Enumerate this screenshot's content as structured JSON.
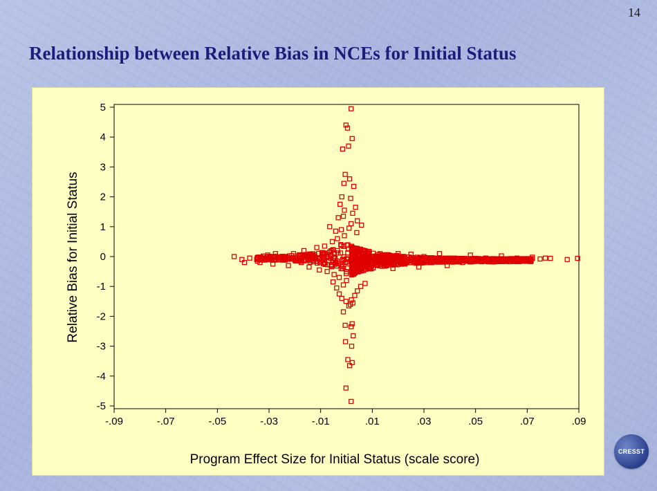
{
  "slide": {
    "page_number": "14",
    "title": "Relationship between Relative Bias in NCEs for Initial Status",
    "logo_text": "CRESST"
  },
  "colors": {
    "background": "#b3bee3",
    "title": "#1c1c7c",
    "chart_panel": "#ffffc4",
    "marker": "#e00000"
  },
  "chart_data": {
    "type": "scatter",
    "title": "",
    "xlabel": "Program Effect Size for Initial Status (scale score)",
    "ylabel": "Relative Bias for Initial Status",
    "xlim": [
      -0.09,
      0.09
    ],
    "ylim": [
      -5,
      5
    ],
    "xticks": [
      -0.09,
      -0.07,
      -0.05,
      -0.03,
      -0.01,
      0.01,
      0.03,
      0.05,
      0.07,
      0.09
    ],
    "xtick_labels": [
      "-.09",
      "-.07",
      "-.05",
      "-.03",
      "-.01",
      ".01",
      ".03",
      ".05",
      ".07",
      ".09"
    ],
    "yticks": [
      5,
      4,
      3,
      2,
      1,
      0,
      -1,
      -2,
      -3,
      -4,
      -5
    ],
    "ytick_labels": [
      "5",
      "4",
      "3",
      "2",
      "1",
      "0",
      "-1",
      "-2",
      "-3",
      "-4",
      "-5"
    ],
    "grid": false,
    "marker": "open-square",
    "series": [
      {
        "points": [
          [
            0.0018,
            4.95
          ],
          [
            -0.0002,
            4.4
          ],
          [
            0.0004,
            4.3
          ],
          [
            0.0022,
            3.95
          ],
          [
            -0.0015,
            3.6
          ],
          [
            0.0008,
            3.7
          ],
          [
            -0.0005,
            2.75
          ],
          [
            0.0012,
            2.6
          ],
          [
            -0.001,
            2.45
          ],
          [
            0.0028,
            2.35
          ],
          [
            -0.0018,
            2.0
          ],
          [
            0.0016,
            1.95
          ],
          [
            -0.0025,
            1.75
          ],
          [
            0.0035,
            1.65
          ],
          [
            -0.0008,
            1.55
          ],
          [
            0.0024,
            1.45
          ],
          [
            -0.0032,
            1.3
          ],
          [
            0.0042,
            1.2
          ],
          [
            -0.0012,
            1.35
          ],
          [
            0.0018,
            1.1
          ],
          [
            -0.0065,
            1.0
          ],
          [
            0.0058,
            1.05
          ],
          [
            0.001,
            0.95
          ],
          [
            -0.002,
            0.9
          ],
          [
            -0.0042,
            0.85
          ],
          [
            0.004,
            0.8
          ],
          [
            0.0018,
            -4.85
          ],
          [
            -0.0002,
            -4.4
          ],
          [
            0.0012,
            -3.65
          ],
          [
            0.0022,
            -3.55
          ],
          [
            0.0005,
            -3.45
          ],
          [
            0.002,
            -3.0
          ],
          [
            -0.0004,
            -2.85
          ],
          [
            0.0026,
            -2.65
          ],
          [
            0.0018,
            -2.35
          ],
          [
            -0.0005,
            -2.3
          ],
          [
            0.0022,
            -2.25
          ],
          [
            -0.0012,
            -1.85
          ],
          [
            0.0015,
            -1.6
          ],
          [
            0.0025,
            -1.55
          ],
          [
            -0.0002,
            -1.5
          ],
          [
            0.0009,
            -1.65
          ],
          [
            0.0019,
            -1.45
          ],
          [
            -0.0018,
            -1.4
          ],
          [
            0.0032,
            -1.3
          ],
          [
            -0.0028,
            -1.25
          ],
          [
            0.0042,
            -1.15
          ],
          [
            -0.0038,
            -1.05
          ],
          [
            0.0055,
            -1.0
          ],
          [
            -0.0012,
            -0.95
          ],
          [
            0.0072,
            -0.9
          ],
          [
            -0.0052,
            -0.85
          ],
          [
            -0.0435,
            0.0
          ],
          [
            -0.0405,
            -0.1
          ],
          [
            -0.0395,
            -0.2
          ],
          [
            -0.0375,
            -0.05
          ],
          [
            -0.0345,
            -0.15
          ],
          [
            -0.0335,
            -0.2
          ],
          [
            -0.0305,
            0.05
          ],
          [
            -0.0285,
            -0.25
          ],
          [
            -0.0275,
            0.1
          ],
          [
            -0.0255,
            -0.05
          ],
          [
            -0.0235,
            0.0
          ],
          [
            -0.0225,
            -0.3
          ],
          [
            -0.0205,
            0.1
          ],
          [
            -0.0195,
            -0.1
          ],
          [
            -0.0175,
            -0.2
          ],
          [
            -0.0165,
            0.2
          ],
          [
            -0.0145,
            -0.35
          ],
          [
            -0.0135,
            0.05
          ],
          [
            -0.0115,
            0.3
          ],
          [
            -0.0105,
            -0.45
          ],
          [
            -0.0095,
            -0.1
          ],
          [
            -0.0085,
            0.35
          ],
          [
            -0.0075,
            -0.5
          ],
          [
            -0.0065,
            0.15
          ],
          [
            -0.0055,
            0.5
          ],
          [
            -0.0048,
            -0.6
          ],
          [
            -0.0042,
            -0.2
          ],
          [
            -0.0035,
            0.6
          ],
          [
            -0.0028,
            -0.7
          ],
          [
            -0.0022,
            0.4
          ],
          [
            -0.0015,
            -0.4
          ],
          [
            -0.0008,
            0.7
          ],
          [
            0.0,
            -0.8
          ],
          [
            0.0008,
            0.25
          ],
          [
            0.009,
            -0.05
          ],
          [
            0.012,
            -0.3
          ],
          [
            0.015,
            0.05
          ],
          [
            0.018,
            -0.4
          ],
          [
            0.02,
            0.1
          ],
          [
            0.022,
            -0.25
          ],
          [
            0.025,
            0.08
          ],
          [
            0.028,
            -0.35
          ],
          [
            0.03,
            0.0
          ],
          [
            0.033,
            -0.2
          ],
          [
            0.036,
            0.1
          ],
          [
            0.039,
            -0.3
          ],
          [
            0.042,
            -0.05
          ],
          [
            0.045,
            -0.2
          ],
          [
            0.048,
            0.05
          ],
          [
            0.051,
            -0.15
          ],
          [
            0.054,
            -0.05
          ],
          [
            0.057,
            -0.18
          ],
          [
            0.06,
            0.02
          ],
          [
            0.063,
            -0.1
          ],
          [
            0.066,
            -0.05
          ],
          [
            0.069,
            -0.12
          ],
          [
            0.072,
            -0.02
          ],
          [
            0.075,
            -0.08
          ],
          [
            0.077,
            -0.05
          ],
          [
            0.079,
            -0.06
          ],
          [
            0.0855,
            -0.1
          ],
          [
            0.0895,
            -0.06
          ]
        ]
      }
    ]
  }
}
